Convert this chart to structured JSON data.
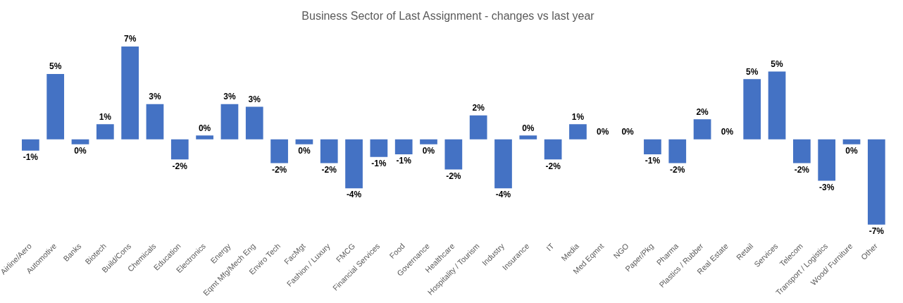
{
  "chart_data": {
    "type": "bar",
    "title": "Business Sector of Last Assignment - changes vs last year",
    "categories": [
      "Airline/Aero",
      "Automotive",
      "Banks",
      "Biotech",
      "Build/Cons",
      "Chemicals",
      "Education",
      "Electronics",
      "Energy",
      "Eqmt Mfg/Mech Eng",
      "Enviro Tech",
      "FacMgt",
      "Fashion / Luxury",
      "FMCG",
      "Financial Services",
      "Food",
      "Governance",
      "Healthcare",
      "Hospitality / Tourism",
      "Industry",
      "Insurance",
      "IT",
      "Media",
      "Med Eqmnt",
      "NGO",
      "Paper/Pkg",
      "Pharma",
      "Plastics / Rubber",
      "Real Estate",
      "Retail",
      "Services",
      "Telecom",
      "Transport / Logistics",
      "Wood/ Furniture",
      "Other"
    ],
    "values": [
      -0.9,
      5.2,
      -0.4,
      1.2,
      7.4,
      2.8,
      -1.6,
      0.3,
      2.8,
      2.6,
      -1.9,
      -0.4,
      -1.9,
      -3.9,
      -1.4,
      -1.2,
      -0.4,
      -2.4,
      1.9,
      -3.9,
      0.3,
      -1.6,
      1.2,
      0,
      0,
      -1.2,
      -1.9,
      1.6,
      0,
      4.8,
      5.4,
      -1.9,
      -3.3,
      -0.4,
      -6.8
    ],
    "value_labels": [
      "-1%",
      "5%",
      "0%",
      "1%",
      "7%",
      "3%",
      "-2%",
      "0%",
      "3%",
      "3%",
      "-2%",
      "0%",
      "-2%",
      "-4%",
      "-1%",
      "-1%",
      "0%",
      "-2%",
      "2%",
      "-4%",
      "0%",
      "-2%",
      "1%",
      "0%",
      "0%",
      "-1%",
      "-2%",
      "2%",
      "0%",
      "5%",
      "5%",
      "-2%",
      "-3%",
      "0%",
      "-7%"
    ],
    "color": "#4472c4",
    "legend": false,
    "grid": false
  }
}
